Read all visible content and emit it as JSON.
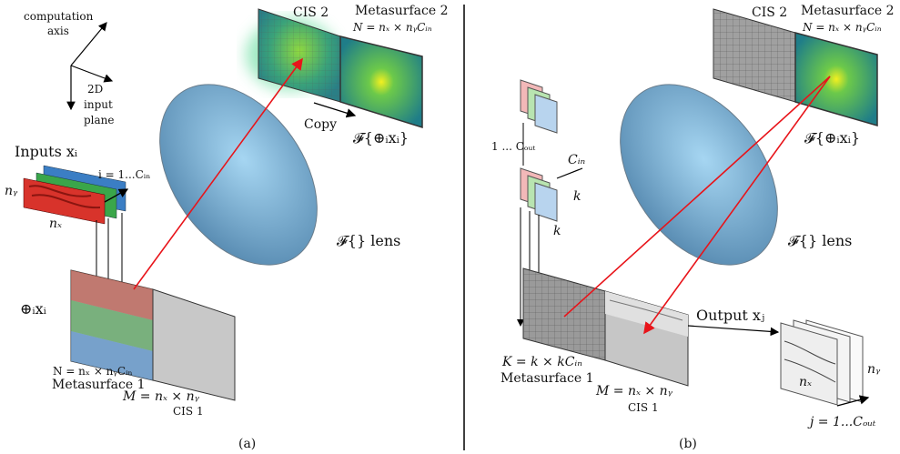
{
  "panel_a": {
    "axis_label_1": "computation",
    "axis_label_2": "axis",
    "plane_label_1": "2D",
    "plane_label_2": "input",
    "plane_label_3": "plane",
    "inputs_label": "Inputs xᵢ",
    "channel_range": "i = 1...Cᵢₙ",
    "ny": "nᵧ",
    "nx": "nₓ",
    "concat_label": "⊕ᵢxᵢ",
    "n_eq": "N = nₓ × nᵧCᵢₙ",
    "metasurface1": "Metasurface 1",
    "m_eq": "M = nₓ × nᵧ",
    "cis1": "CIS 1",
    "cis2": "CIS 2",
    "metasurface2": "Metasurface 2",
    "n_eq2": "N = nₓ × nᵧCᵢₙ",
    "copy": "Copy",
    "fourier": "𝓕{⊕ᵢxᵢ}",
    "lens": "𝓕{} lens",
    "caption": "(a)"
  },
  "panel_b": {
    "cout_range": "1 ... Cₒᵤₜ",
    "cin": "Cᵢₙ",
    "k1": "k",
    "k2": "k",
    "k_eq": "K = k × kCᵢₙ",
    "metasurface1": "Metasurface 1",
    "m_eq": "M = nₓ × nᵧ",
    "cis1": "CIS 1",
    "cis2": "CIS 2",
    "metasurface2": "Metasurface 2",
    "n_eq2": "N = nₓ × nᵧCᵢₙ",
    "fourier": "𝓕{⊕ᵢxᵢ}",
    "lens": "𝓕{} lens",
    "output_label": "Output xⱼ",
    "ny": "nᵧ",
    "nx": "nₓ",
    "out_range": "j = 1...Cₒᵤₜ",
    "caption": "(b)"
  },
  "colors": {
    "ray": "#e8141a",
    "lens": "#7fb8e0",
    "input_red": "#d8332b",
    "input_green": "#3aa64a",
    "input_blue": "#3b7ec4"
  }
}
